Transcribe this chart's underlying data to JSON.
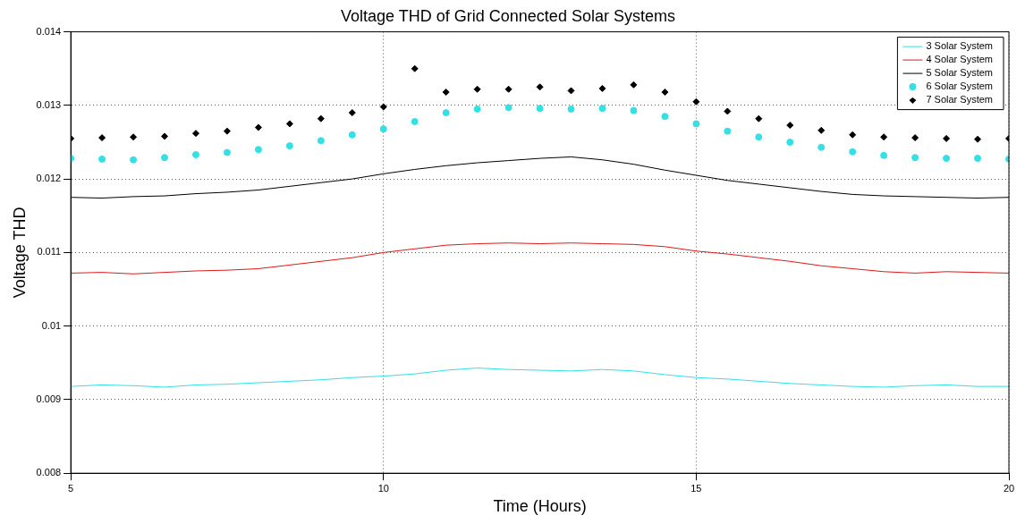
{
  "chart_data": {
    "type": "line",
    "title": "Voltage THD of Grid Connected Solar Systems",
    "xlabel": "Time (Hours)",
    "ylabel": "Voltage THD",
    "x": [
      5,
      5.5,
      6,
      6.5,
      7,
      7.5,
      8,
      8.5,
      9,
      9.5,
      10,
      10.5,
      11,
      11.5,
      12,
      12.5,
      13,
      13.5,
      14,
      14.5,
      15,
      15.5,
      16,
      16.5,
      17,
      17.5,
      18,
      18.5,
      19,
      19.5,
      20
    ],
    "xlim": [
      5,
      20
    ],
    "xticks": [
      5,
      10,
      15,
      20
    ],
    "ylim": [
      0.008,
      0.014
    ],
    "yticks": [
      0.008,
      0.009,
      0.01,
      0.011,
      0.012,
      0.013,
      0.014
    ],
    "grid": true,
    "legend": "top right",
    "series": [
      {
        "name": "3 Solar System",
        "color": "#33e0e6",
        "values": [
          0.00918,
          0.0092,
          0.00919,
          0.00917,
          0.0092,
          0.00921,
          0.00923,
          0.00925,
          0.00927,
          0.0093,
          0.00932,
          0.00935,
          0.0094,
          0.00943,
          0.00941,
          0.0094,
          0.00939,
          0.00941,
          0.00939,
          0.00934,
          0.0093,
          0.00928,
          0.00925,
          0.00922,
          0.0092,
          0.00918,
          0.00917,
          0.00919,
          0.0092,
          0.00918,
          0.00918
        ]
      },
      {
        "name": "4 Solar System",
        "color": "#e01818",
        "values": [
          0.01072,
          0.01073,
          0.01071,
          0.01073,
          0.01075,
          0.01076,
          0.01078,
          0.01083,
          0.01088,
          0.01093,
          0.011,
          0.01105,
          0.0111,
          0.01112,
          0.01113,
          0.01112,
          0.01113,
          0.01112,
          0.01111,
          0.01108,
          0.01102,
          0.01098,
          0.01093,
          0.01088,
          0.01082,
          0.01078,
          0.01074,
          0.01072,
          0.01074,
          0.01073,
          0.01072
        ]
      },
      {
        "name": "5 Solar System",
        "color": "#000000",
        "values": [
          0.01175,
          0.01174,
          0.01176,
          0.01177,
          0.0118,
          0.01182,
          0.01185,
          0.0119,
          0.01195,
          0.012,
          0.01207,
          0.01213,
          0.01218,
          0.01222,
          0.01225,
          0.01228,
          0.0123,
          0.01226,
          0.0122,
          0.01212,
          0.01205,
          0.01198,
          0.01193,
          0.01188,
          0.01183,
          0.01179,
          0.01177,
          0.01176,
          0.01175,
          0.01174,
          0.01175
        ]
      },
      {
        "name": "6 Solar System",
        "type": "scatter",
        "marker": "circle",
        "color": "#33e0e6",
        "values": [
          0.01228,
          0.01227,
          0.01226,
          0.01229,
          0.01233,
          0.01236,
          0.0124,
          0.01245,
          0.01252,
          0.0126,
          0.01268,
          0.01278,
          0.0129,
          0.01295,
          0.01297,
          0.01296,
          0.01295,
          0.01296,
          0.01293,
          0.01285,
          0.01275,
          0.01265,
          0.01257,
          0.0125,
          0.01243,
          0.01237,
          0.01232,
          0.01229,
          0.01228,
          0.01228,
          0.01227
        ]
      },
      {
        "name": "7 Solar System",
        "type": "scatter",
        "marker": "diamond",
        "color": "#000000",
        "values": [
          0.01255,
          0.01256,
          0.01257,
          0.01258,
          0.01262,
          0.01265,
          0.0127,
          0.01275,
          0.01282,
          0.0129,
          0.01298,
          0.0135,
          0.01318,
          0.01322,
          0.01322,
          0.01325,
          0.0132,
          0.01323,
          0.01328,
          0.01318,
          0.01305,
          0.01292,
          0.01282,
          0.01273,
          0.01266,
          0.0126,
          0.01257,
          0.01256,
          0.01255,
          0.01254,
          0.01255
        ]
      }
    ]
  }
}
